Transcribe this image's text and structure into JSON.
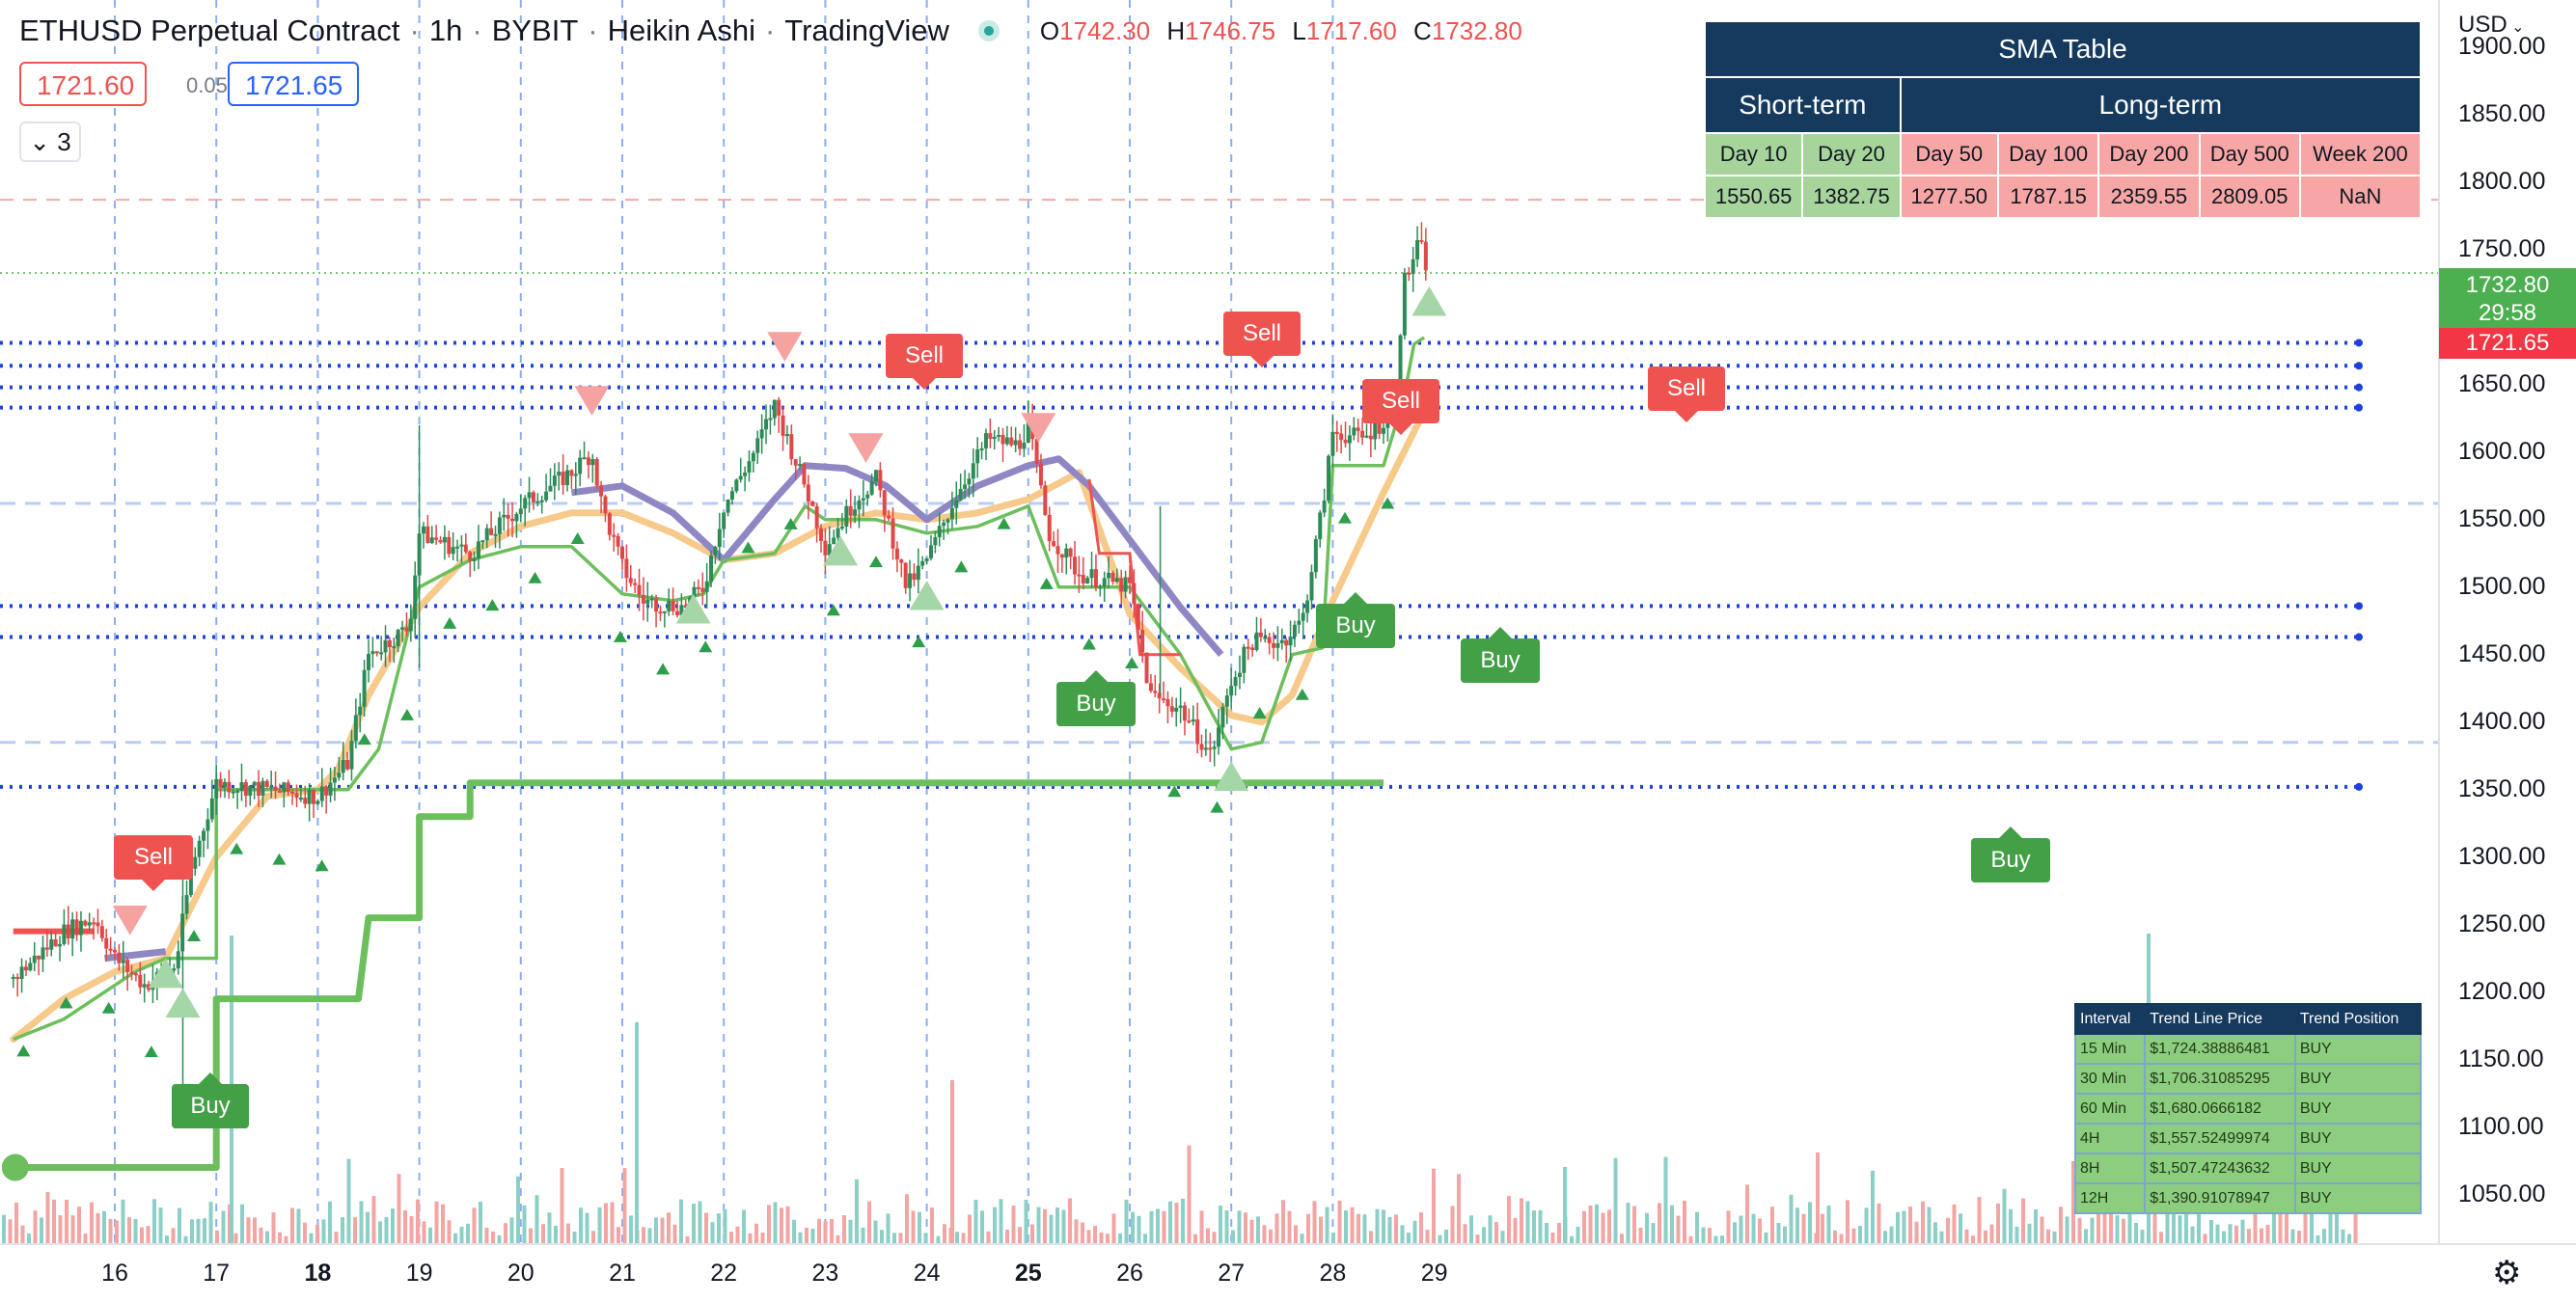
{
  "header": {
    "symbol": "ETHUSD Perpetual Contract",
    "interval": "1h",
    "exchange": "BYBIT",
    "chart_style": "Heikin Ashi",
    "platform": "TradingView",
    "ohlc": {
      "o_key": "O",
      "o": "1742.30",
      "h_key": "H",
      "h": "1746.75",
      "l_key": "L",
      "l": "1717.60",
      "c_key": "C",
      "c": "1732.80"
    }
  },
  "order": {
    "sell_price": "1721.60",
    "spread": "0.05",
    "buy_price": "1721.65",
    "indicator_count": "3"
  },
  "currency": "USD",
  "price_axis": [
    "1900.00",
    "1850.00",
    "1800.00",
    "1750.00",
    "1700.00",
    "1650.00",
    "1600.00",
    "1550.00",
    "1500.00",
    "1450.00",
    "1400.00",
    "1350.00",
    "1300.00",
    "1250.00",
    "1200.00",
    "1150.00",
    "1100.00",
    "1050.00"
  ],
  "time_axis": [
    {
      "label": "16",
      "bold": false
    },
    {
      "label": "17",
      "bold": false
    },
    {
      "label": "18",
      "bold": true
    },
    {
      "label": "19",
      "bold": false
    },
    {
      "label": "20",
      "bold": false
    },
    {
      "label": "21",
      "bold": false
    },
    {
      "label": "22",
      "bold": false
    },
    {
      "label": "23",
      "bold": false
    },
    {
      "label": "24",
      "bold": false
    },
    {
      "label": "25",
      "bold": true
    },
    {
      "label": "26",
      "bold": false
    },
    {
      "label": "27",
      "bold": false
    },
    {
      "label": "28",
      "bold": false
    },
    {
      "label": "29",
      "bold": false
    }
  ],
  "last_price": {
    "value": "1732.80",
    "countdown": "29:58",
    "color": "#4caf50"
  },
  "ask_price": {
    "value": "1721.65",
    "color": "#f23645"
  },
  "sma_table": {
    "title": "SMA Table",
    "group_short": "Short-term",
    "group_long": "Long-term",
    "columns": [
      "Day 10",
      "Day 20",
      "Day 50",
      "Day 100",
      "Day 200",
      "Day 500",
      "Week 200"
    ],
    "values": [
      "1550.65",
      "1382.75",
      "1277.50",
      "1787.15",
      "2359.55",
      "2809.05",
      "NaN"
    ]
  },
  "trend_table": {
    "headers": [
      "Interval",
      "Trend Line Price",
      "Trend Position"
    ],
    "rows": [
      [
        "15 Min",
        "$1,724.38886481",
        "BUY"
      ],
      [
        "30 Min",
        "$1,706.31085295",
        "BUY"
      ],
      [
        "60 Min",
        "$1,680.0666182",
        "BUY"
      ],
      [
        "4H",
        "$1,557.52499974",
        "BUY"
      ],
      [
        "8H",
        "$1,507.47243632",
        "BUY"
      ],
      [
        "12H",
        "$1,390.91078947",
        "BUY"
      ]
    ]
  },
  "signals": {
    "buy_label": "Buy",
    "sell_label": "Sell"
  },
  "colors": {
    "up": "#26a69a",
    "down": "#ef5350",
    "buy": "#43a047",
    "sell": "#ef5350",
    "ma_orange": "#f7c98a",
    "ma_purple": "#8f87c4",
    "trail_green": "#6cbf5c"
  },
  "chart_data": {
    "type": "candlestick",
    "y_range": [
      1020,
      1920
    ],
    "x_range": [
      "15 (~17:00)",
      "29 (00:00)"
    ],
    "price_levels_blue_dotted": [
      1681,
      1664,
      1648,
      1633,
      1486,
      1463,
      1352
    ],
    "price_level_red_dashed": 1787,
    "sma_trajectory": [
      [
        15.0,
        1165
      ],
      [
        15.5,
        1195
      ],
      [
        16.0,
        1215
      ],
      [
        16.5,
        1225
      ],
      [
        17.0,
        1300
      ],
      [
        17.5,
        1345
      ],
      [
        18.0,
        1350
      ],
      [
        18.2,
        1365
      ],
      [
        18.5,
        1420
      ],
      [
        19.0,
        1485
      ],
      [
        19.5,
        1525
      ],
      [
        20.0,
        1545
      ],
      [
        20.5,
        1555
      ],
      [
        21.0,
        1555
      ],
      [
        21.5,
        1540
      ],
      [
        22.0,
        1520
      ],
      [
        22.5,
        1525
      ],
      [
        23.0,
        1545
      ],
      [
        23.5,
        1555
      ],
      [
        24.0,
        1550
      ],
      [
        24.5,
        1555
      ],
      [
        25.0,
        1565
      ],
      [
        25.5,
        1585
      ],
      [
        26.0,
        1480
      ],
      [
        26.5,
        1440
      ],
      [
        27.0,
        1405
      ],
      [
        27.3,
        1400
      ],
      [
        27.6,
        1420
      ],
      [
        28.0,
        1490
      ],
      [
        28.5,
        1570
      ],
      [
        28.9,
        1630
      ]
    ],
    "long_ma_trajectory": [
      [
        15.9,
        1225
      ],
      [
        16.5,
        1230
      ],
      [
        20.5,
        1570
      ],
      [
        21.0,
        1575
      ],
      [
        21.5,
        1555
      ],
      [
        22.0,
        1520
      ],
      [
        22.5,
        1565
      ],
      [
        22.8,
        1590
      ],
      [
        23.2,
        1588
      ],
      [
        23.6,
        1575
      ],
      [
        24.0,
        1550
      ],
      [
        24.5,
        1575
      ],
      [
        25.0,
        1590
      ],
      [
        25.3,
        1595
      ],
      [
        25.6,
        1575
      ],
      [
        26.0,
        1535
      ],
      [
        26.5,
        1485
      ],
      [
        26.9,
        1450
      ]
    ],
    "long_stop_step": [
      [
        15.0,
        1070
      ],
      [
        16.0,
        1070
      ],
      [
        17.0,
        1070
      ],
      [
        17.0,
        1195
      ],
      [
        18.4,
        1195
      ],
      [
        18.5,
        1255
      ],
      [
        19.0,
        1255
      ],
      [
        19.0,
        1330
      ],
      [
        19.5,
        1330
      ],
      [
        19.5,
        1355
      ],
      [
        28.5,
        1355
      ]
    ],
    "trail_stop": [
      [
        15.0,
        1165
      ],
      [
        15.5,
        1180
      ],
      [
        16.2,
        1215
      ],
      [
        16.5,
        1225
      ],
      [
        17.0,
        1225
      ],
      [
        17.0,
        1350
      ],
      [
        17.8,
        1350
      ],
      [
        18.3,
        1350
      ],
      [
        18.6,
        1380
      ],
      [
        18.8,
        1440
      ],
      [
        19.0,
        1500
      ],
      [
        19.5,
        1520
      ],
      [
        20.0,
        1530
      ],
      [
        20.5,
        1530
      ],
      [
        21.0,
        1495
      ],
      [
        21.5,
        1490
      ],
      [
        21.8,
        1495
      ],
      [
        22.0,
        1520
      ],
      [
        22.5,
        1525
      ],
      [
        22.8,
        1560
      ],
      [
        23.0,
        1550
      ],
      [
        23.5,
        1550
      ],
      [
        24.0,
        1540
      ],
      [
        24.5,
        1545
      ],
      [
        25.0,
        1560
      ],
      [
        25.3,
        1500
      ],
      [
        26.0,
        1500
      ],
      [
        26.5,
        1450
      ],
      [
        27.0,
        1380
      ],
      [
        27.3,
        1385
      ],
      [
        27.6,
        1450
      ],
      [
        27.9,
        1455
      ],
      [
        28.0,
        1590
      ],
      [
        28.5,
        1590
      ],
      [
        28.7,
        1640
      ],
      [
        28.8,
        1680
      ],
      [
        28.9,
        1685
      ]
    ],
    "sell_stop": [
      [
        15.0,
        1245
      ],
      [
        15.8,
        1245
      ],
      [
        16.0,
        1235
      ],
      [
        25.0,
        1580
      ],
      [
        25.6,
        1580
      ],
      [
        25.7,
        1525
      ],
      [
        26.0,
        1525
      ],
      [
        26.1,
        1450
      ],
      [
        26.5,
        1450
      ]
    ],
    "price_path": [
      [
        15.0,
        1210
      ],
      [
        15.5,
        1245
      ],
      [
        15.8,
        1255
      ],
      [
        16.0,
        1225
      ],
      [
        16.3,
        1205
      ],
      [
        16.6,
        1220
      ],
      [
        16.75,
        1290
      ],
      [
        17.0,
        1355
      ],
      [
        17.5,
        1350
      ],
      [
        18.0,
        1345
      ],
      [
        18.3,
        1370
      ],
      [
        18.5,
        1450
      ],
      [
        18.9,
        1470
      ],
      [
        19.0,
        1540
      ],
      [
        19.5,
        1525
      ],
      [
        20.0,
        1560
      ],
      [
        20.5,
        1585
      ],
      [
        20.7,
        1600
      ],
      [
        20.8,
        1560
      ],
      [
        21.0,
        1515
      ],
      [
        21.2,
        1490
      ],
      [
        21.6,
        1485
      ],
      [
        21.8,
        1500
      ],
      [
        22.0,
        1560
      ],
      [
        22.3,
        1600
      ],
      [
        22.5,
        1635
      ],
      [
        22.8,
        1575
      ],
      [
        23.0,
        1530
      ],
      [
        23.3,
        1565
      ],
      [
        23.5,
        1580
      ],
      [
        23.8,
        1500
      ],
      [
        24.0,
        1520
      ],
      [
        24.3,
        1570
      ],
      [
        24.6,
        1610
      ],
      [
        24.9,
        1605
      ],
      [
        25.0,
        1620
      ],
      [
        25.2,
        1540
      ],
      [
        25.5,
        1510
      ],
      [
        26.0,
        1500
      ],
      [
        26.2,
        1420
      ],
      [
        26.5,
        1410
      ],
      [
        26.8,
        1375
      ],
      [
        27.0,
        1430
      ],
      [
        27.2,
        1460
      ],
      [
        27.5,
        1460
      ],
      [
        27.7,
        1475
      ],
      [
        27.9,
        1560
      ],
      [
        28.0,
        1615
      ],
      [
        28.3,
        1610
      ],
      [
        28.6,
        1630
      ],
      [
        28.7,
        1725
      ],
      [
        28.85,
        1755
      ],
      [
        28.95,
        1732
      ]
    ],
    "buy_signals": [
      [
        16.5,
        1212
      ],
      [
        21.7,
        1482
      ],
      [
        23.15,
        1525
      ],
      [
        24.0,
        1492
      ],
      [
        27.0,
        1358
      ],
      [
        16.67,
        1190
      ]
    ],
    "sell_signals": [
      [
        16.15,
        1255
      ],
      [
        20.7,
        1640
      ],
      [
        22.6,
        1680
      ],
      [
        23.4,
        1605
      ],
      [
        25.1,
        1620
      ]
    ],
    "volume_scale_hint": "relative",
    "volume_bars": "hourly, teal up / red down"
  }
}
